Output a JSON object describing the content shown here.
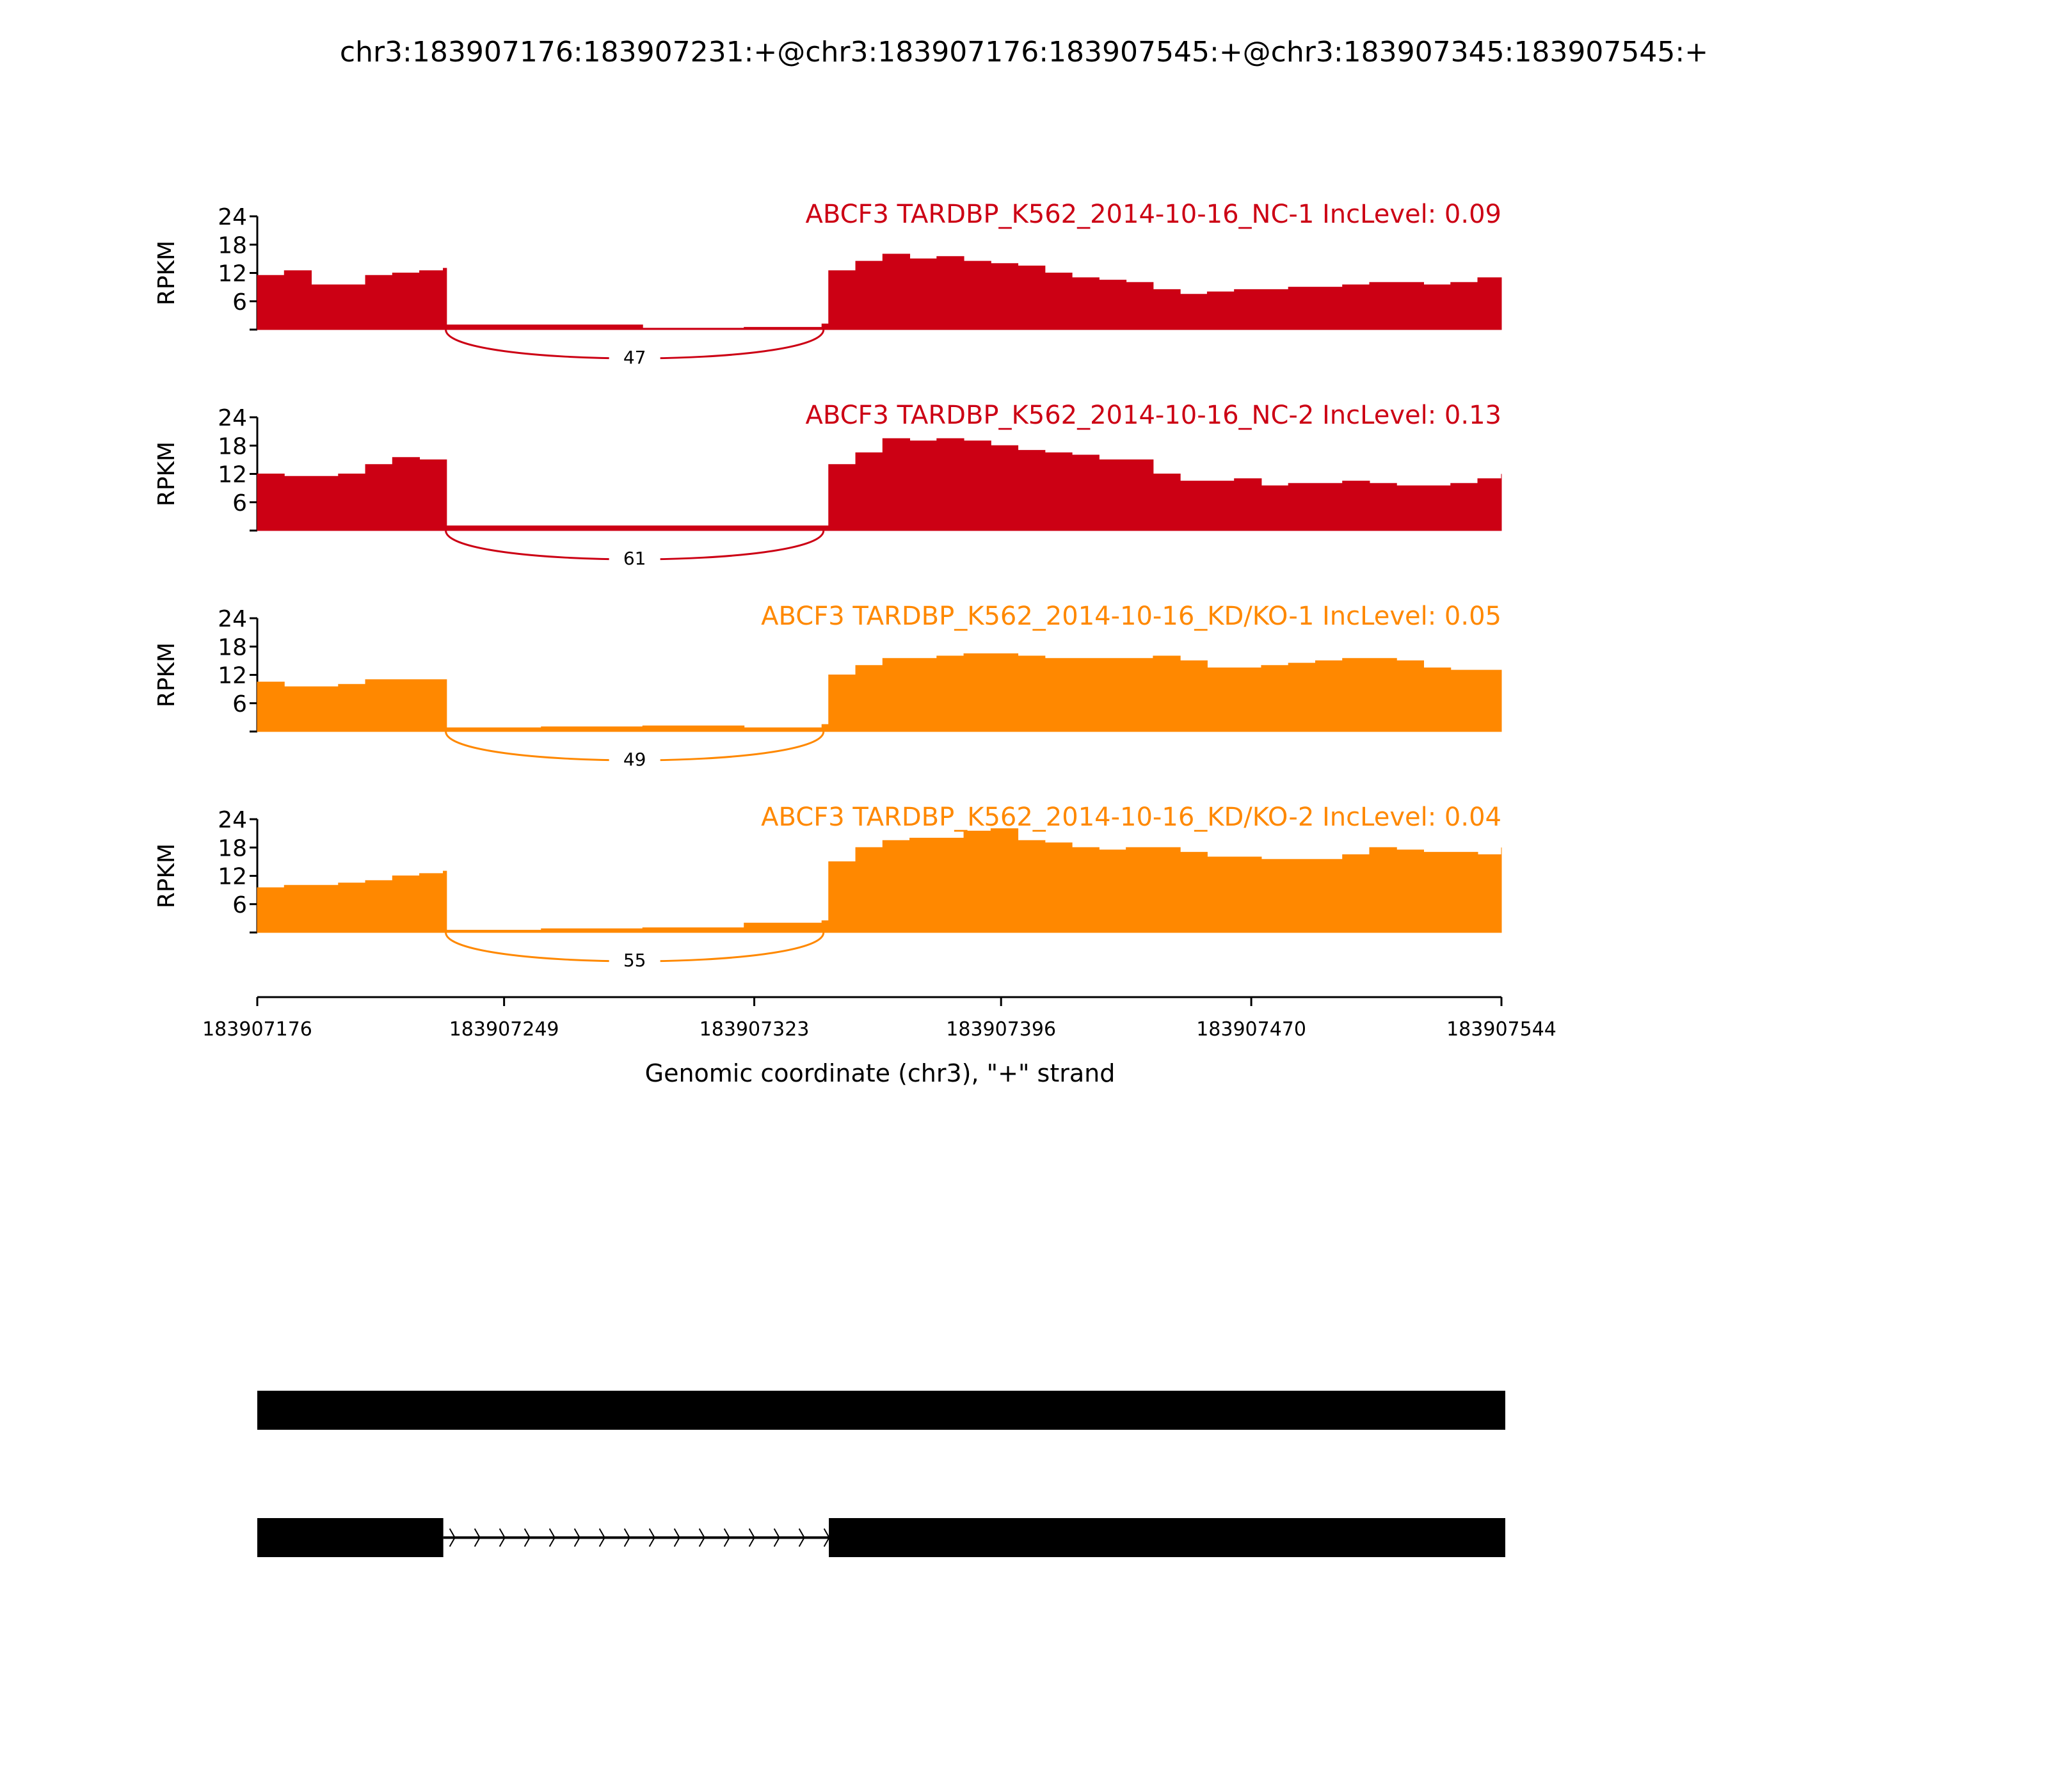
{
  "chart_data": {
    "type": "area",
    "title": "chr3:183907176:183907231:+@chr3:183907176:183907545:+@chr3:183907345:183907545:+",
    "xlabel": "Genomic coordinate (chr3), \"+\" strand",
    "ylabel": "RPKM",
    "xlim": [
      183907176,
      183907544
    ],
    "ylim": [
      0,
      24
    ],
    "yticks": [
      "6",
      "12",
      "18",
      "24"
    ],
    "ytick_values": [
      6,
      12,
      18,
      24
    ],
    "xtick_values": [
      183907176,
      183907249,
      183907323,
      183907396,
      183907470,
      183907544
    ],
    "xticks": [
      "183907176",
      "183907249",
      "183907323",
      "183907396",
      "183907470",
      "183907544"
    ],
    "junction": {
      "start": 183907231,
      "end": 183907345
    },
    "positions": [
      183907176,
      183907184,
      183907192,
      183907200,
      183907208,
      183907216,
      183907224,
      183907231,
      183907232,
      183907260,
      183907290,
      183907320,
      183907343,
      183907345,
      183907353,
      183907361,
      183907369,
      183907377,
      183907385,
      183907393,
      183907401,
      183907409,
      183907417,
      183907425,
      183907433,
      183907441,
      183907449,
      183907457,
      183907465,
      183907473,
      183907481,
      183907489,
      183907497,
      183907505,
      183907513,
      183907521,
      183907529,
      183907537,
      183907544
    ],
    "series": [
      {
        "name": "ABCF3 TARDBP_K562_2014-10-16_NC-1 IncLevel: 0.09",
        "color": "#cc0014",
        "junction_count": "47",
        "values": [
          11.5,
          12.5,
          9.5,
          9.5,
          11.5,
          12,
          12.5,
          13,
          1,
          1,
          0.3,
          0.5,
          1.2,
          12.5,
          14.5,
          16,
          15,
          15.5,
          14.5,
          14,
          13.5,
          12,
          11,
          10.5,
          10,
          8.5,
          7.5,
          8,
          8.5,
          8.5,
          9,
          9,
          9.5,
          10,
          10,
          9.5,
          10,
          11,
          11
        ]
      },
      {
        "name": "ABCF3 TARDBP_K562_2014-10-16_NC-2 IncLevel: 0.13",
        "color": "#cc0014",
        "junction_count": "61",
        "values": [
          12,
          11.5,
          11.5,
          12,
          14,
          15.5,
          15,
          15,
          1,
          1,
          1,
          1,
          1,
          14,
          16.5,
          19.5,
          19,
          19.5,
          19,
          18,
          17,
          16.5,
          16,
          15,
          15,
          12,
          10.5,
          10.5,
          11,
          9.5,
          10,
          10,
          10.5,
          10,
          9.5,
          9.5,
          10,
          11,
          12
        ]
      },
      {
        "name": "ABCF3 TARDBP_K562_2014-10-16_KD/KO-1 IncLevel: 0.05",
        "color": "#ff8800",
        "junction_count": "49",
        "values": [
          10.5,
          9.5,
          9.5,
          10,
          11,
          11,
          11,
          11,
          0.8,
          1,
          1.2,
          0.8,
          1.5,
          12,
          14,
          15.5,
          15.5,
          16,
          16.5,
          16.5,
          16,
          15.5,
          15.5,
          15.5,
          15.5,
          16,
          15,
          13.5,
          13.5,
          14,
          14.5,
          15,
          15.5,
          15.5,
          15,
          13.5,
          13,
          13,
          13
        ]
      },
      {
        "name": "ABCF3 TARDBP_K562_2014-10-16_KD/KO-2 IncLevel: 0.04",
        "color": "#ff8800",
        "junction_count": "55",
        "values": [
          9.5,
          10,
          10,
          10.5,
          11,
          12,
          12.5,
          13,
          0.5,
          0.8,
          1,
          2,
          2.5,
          15,
          18,
          19.5,
          20,
          20,
          21.5,
          22,
          19.5,
          19,
          18,
          17.5,
          18,
          18,
          17,
          16,
          16,
          15.5,
          15.5,
          15.5,
          16.5,
          18,
          17.5,
          17,
          17,
          16.5,
          18
        ]
      }
    ],
    "transcripts": [
      {
        "exons": [
          [
            183907176,
            183907545
          ]
        ]
      },
      {
        "exons": [
          [
            183907176,
            183907231
          ],
          [
            183907345,
            183907545
          ]
        ]
      }
    ]
  }
}
